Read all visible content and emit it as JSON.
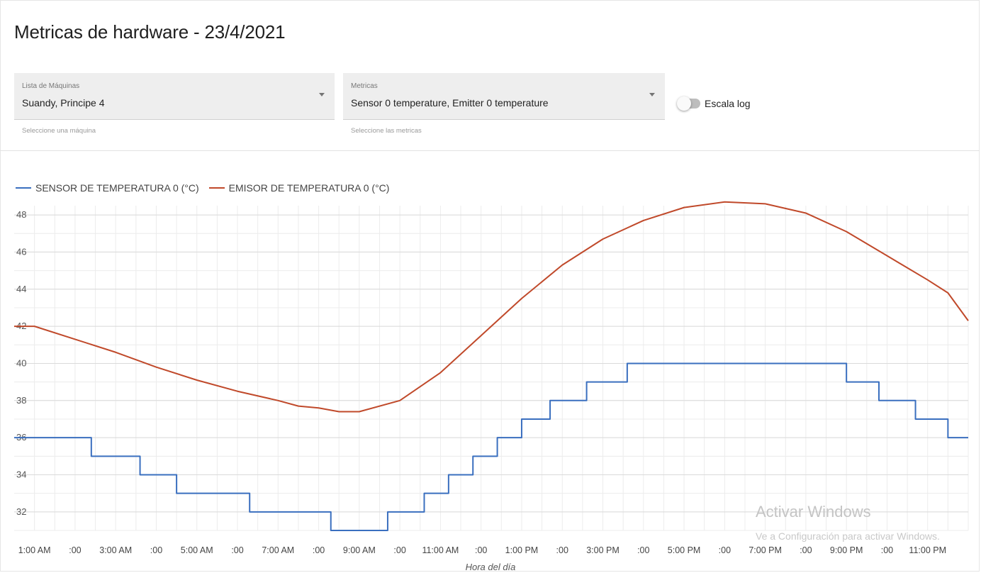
{
  "header": {
    "title": "Metricas de hardware - 23/4/2021"
  },
  "machine_select": {
    "label": "Lista de Máquinas",
    "value": "Suandy, Principe 4",
    "hint": "Seleccione una máquina"
  },
  "metrics_select": {
    "label": "Metricas",
    "value": "Sensor 0 temperature, Emitter 0 temperature",
    "hint": "Seleccione las metricas"
  },
  "log_toggle": {
    "label": "Escala log",
    "on": false
  },
  "watermark": {
    "title": "Activar Windows",
    "subtitle": "Ve a Configuración para activar Windows."
  },
  "chart_data": {
    "type": "line",
    "xlabel": "Hora del día",
    "ylabel": "",
    "xlim": [
      0.5,
      24
    ],
    "ylim": [
      31,
      48.5
    ],
    "yticks": [
      32,
      34,
      36,
      38,
      40,
      42,
      44,
      46,
      48
    ],
    "xtick_labels": [
      "1:00 AM",
      ":00",
      "3:00 AM",
      ":00",
      "5:00 AM",
      ":00",
      "7:00 AM",
      ":00",
      "9:00 AM",
      ":00",
      "11:00 AM",
      ":00",
      "1:00 PM",
      ":00",
      "3:00 PM",
      ":00",
      "5:00 PM",
      ":00",
      "7:00 PM",
      ":00",
      "9:00 PM",
      ":00",
      "11:00 PM"
    ],
    "grid": true,
    "legend_position": "top-left",
    "colors": {
      "sensor": "#3a6fbf",
      "emitter": "#c0492a"
    },
    "series": [
      {
        "name": "SENSOR DE TEMPERATURA 0 (°C)",
        "step": true,
        "x": [
          0.5,
          2.4,
          3.6,
          4.5,
          6.3,
          8.3,
          9.7,
          10.6,
          11.2,
          11.8,
          12.4,
          13.0,
          13.7,
          14.6,
          15.6,
          20.1,
          21.0,
          21.8,
          22.7,
          23.5,
          24.0
        ],
        "y": [
          36,
          35,
          34,
          33,
          32,
          31,
          32,
          33,
          34,
          35,
          36,
          37,
          38,
          39,
          40,
          40,
          39,
          38,
          37,
          36,
          36
        ]
      },
      {
        "name": "EMISOR DE TEMPERATURA 0 (°C)",
        "step": false,
        "x": [
          0.5,
          1.0,
          2.0,
          3.0,
          4.0,
          5.0,
          6.0,
          7.0,
          7.5,
          8.0,
          8.5,
          9.0,
          10.0,
          11.0,
          12.0,
          13.0,
          14.0,
          15.0,
          16.0,
          17.0,
          18.0,
          19.0,
          20.0,
          21.0,
          22.0,
          23.0,
          23.5,
          24.0
        ],
        "y": [
          42.0,
          42.0,
          41.3,
          40.6,
          39.8,
          39.1,
          38.5,
          38.0,
          37.7,
          37.6,
          37.4,
          37.4,
          38.0,
          39.5,
          41.5,
          43.5,
          45.3,
          46.7,
          47.7,
          48.4,
          48.7,
          48.6,
          48.1,
          47.1,
          45.8,
          44.5,
          43.8,
          42.3
        ]
      }
    ]
  }
}
